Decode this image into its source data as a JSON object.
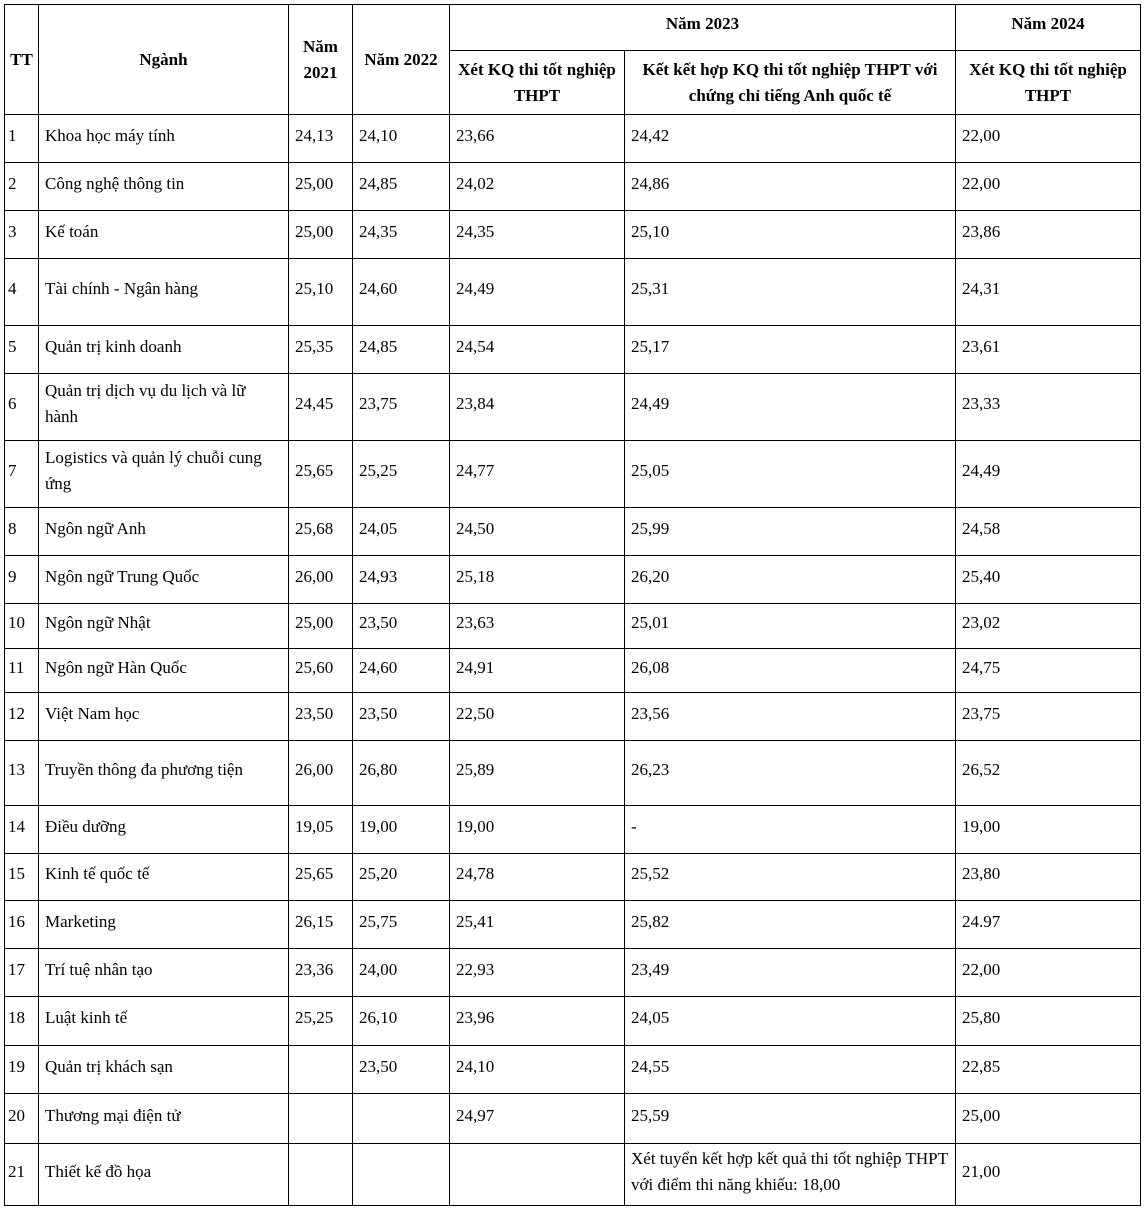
{
  "header": {
    "tt": "TT",
    "nganh": "Ngành",
    "nam2021": "Năm 2021",
    "nam2022": "Năm 2022",
    "nam2023": "Năm 2023",
    "nam2024": "Năm 2024",
    "sub_2023_thpt": "Xét KQ thi tốt nghiệp THPT",
    "sub_2023_combined": "Kết kết hợp KQ thi tốt nghiệp THPT với chứng chỉ tiếng Anh quốc tế",
    "sub_2024_thpt": "Xét KQ thi tốt nghiệp THPT"
  },
  "rows": [
    [
      "1",
      "Khoa học máy tính",
      "24,13",
      "24,10",
      "23,66",
      "24,42",
      "22,00"
    ],
    [
      "2",
      "Công nghệ thông tin",
      "25,00",
      "24,85",
      "24,02",
      "24,86",
      "22,00"
    ],
    [
      "3",
      "Kế toán",
      "25,00",
      "24,35",
      "24,35",
      "25,10",
      "23,86"
    ],
    [
      "4",
      "Tài chính - Ngân  hàng",
      "25,10",
      "24,60",
      "24,49",
      "25,31",
      "24,31"
    ],
    [
      "5",
      "Quản trị kinh doanh",
      "25,35",
      "24,85",
      "24,54",
      "25,17",
      "23,61"
    ],
    [
      "6",
      "Quản trị dịch vụ du lịch và lữ hành",
      "24,45",
      "23,75",
      "23,84",
      "24,49",
      "23,33"
    ],
    [
      "7",
      "Logistics và quản lý chuỗi cung ứng",
      "25,65",
      "25,25",
      "24,77",
      "25,05",
      "24,49"
    ],
    [
      "8",
      "Ngôn ngữ Anh",
      "25,68",
      "24,05",
      "24,50",
      "25,99",
      "24,58"
    ],
    [
      "9",
      "Ngôn ngữ Trung Quốc",
      "26,00",
      "24,93",
      "25,18",
      "26,20",
      "25,40"
    ],
    [
      "10",
      "Ngôn ngữ Nhật",
      "25,00",
      "23,50",
      "23,63",
      "25,01",
      "23,02"
    ],
    [
      "11",
      "Ngôn ngữ Hàn Quốc",
      "25,60",
      "24,60",
      "24,91",
      "26,08",
      "24,75"
    ],
    [
      "12",
      "Việt Nam học",
      "23,50",
      "23,50",
      "22,50",
      "23,56",
      "23,75"
    ],
    [
      "13",
      "Truyền thông đa phương tiện",
      "26,00",
      "26,80",
      "25,89",
      "26,23",
      "26,52"
    ],
    [
      "14",
      "Điều dưỡng",
      "19,05",
      "19,00",
      "19,00",
      "-",
      "19,00"
    ],
    [
      "15",
      "Kinh tế quốc tế",
      "25,65",
      "25,20",
      "24,78",
      "25,52",
      "23,80"
    ],
    [
      "16",
      "Marketing",
      "26,15",
      "25,75",
      "25,41",
      "25,82",
      "24.97"
    ],
    [
      "17",
      "Trí tuệ nhân tạo",
      "23,36",
      "24,00",
      "22,93",
      "23,49",
      "22,00"
    ],
    [
      "18",
      "Luật kinh tế",
      "25,25",
      "26,10",
      "23,96",
      "24,05",
      "25,80"
    ],
    [
      "19",
      "Quản trị khách sạn",
      "",
      "23,50",
      "24,10",
      "24,55",
      "22,85"
    ],
    [
      "20",
      "Thương mại điện tử",
      "",
      "",
      "24,97",
      "25,59",
      "25,00"
    ],
    [
      "21",
      "Thiết kế đồ họa",
      "",
      "",
      "",
      "Xét tuyển kết hợp kết quả thi tốt nghiệp THPT với điểm thi năng khiếu: 18,00",
      "21,00"
    ]
  ]
}
